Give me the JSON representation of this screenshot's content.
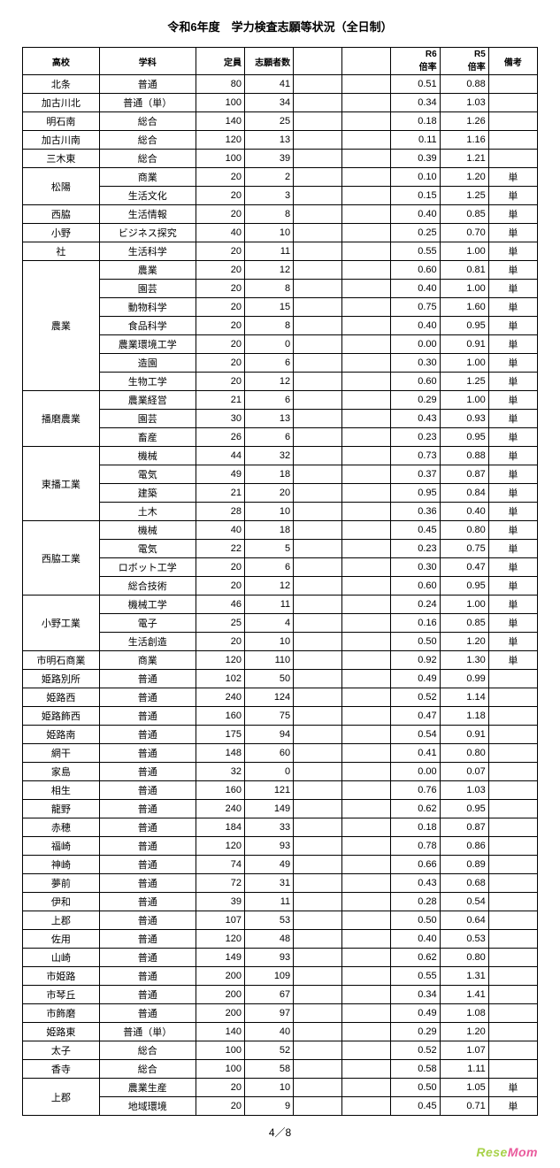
{
  "title": "令和6年度　学力検査志願等状況（全日制）",
  "pager": "4／8",
  "brand_left": "Rese",
  "brand_right": "Mom",
  "headers": {
    "school": "高校",
    "dept": "学科",
    "capacity": "定員",
    "applicants": "志願者数",
    "blank1": "",
    "blank2": "",
    "r6": "R6\n倍率",
    "r5": "R5\n倍率",
    "note": "備考"
  },
  "groups": [
    {
      "school": "北条",
      "rows": [
        {
          "dept": "普通",
          "cap": 80,
          "app": 41,
          "r6": "0.51",
          "r5": "0.88",
          "note": ""
        }
      ]
    },
    {
      "school": "加古川北",
      "rows": [
        {
          "dept": "普通（単）",
          "cap": 100,
          "app": 34,
          "r6": "0.34",
          "r5": "1.03",
          "note": ""
        }
      ]
    },
    {
      "school": "明石南",
      "rows": [
        {
          "dept": "総合",
          "cap": 140,
          "app": 25,
          "r6": "0.18",
          "r5": "1.26",
          "note": ""
        }
      ]
    },
    {
      "school": "加古川南",
      "rows": [
        {
          "dept": "総合",
          "cap": 120,
          "app": 13,
          "r6": "0.11",
          "r5": "1.16",
          "note": ""
        }
      ]
    },
    {
      "school": "三木東",
      "rows": [
        {
          "dept": "総合",
          "cap": 100,
          "app": 39,
          "r6": "0.39",
          "r5": "1.21",
          "note": ""
        }
      ]
    },
    {
      "school": "松陽",
      "rows": [
        {
          "dept": "商業",
          "cap": 20,
          "app": 2,
          "r6": "0.10",
          "r5": "1.20",
          "note": "単"
        },
        {
          "dept": "生活文化",
          "cap": 20,
          "app": 3,
          "r6": "0.15",
          "r5": "1.25",
          "note": "単"
        }
      ]
    },
    {
      "school": "西脇",
      "rows": [
        {
          "dept": "生活情報",
          "cap": 20,
          "app": 8,
          "r6": "0.40",
          "r5": "0.85",
          "note": "単"
        }
      ]
    },
    {
      "school": "小野",
      "rows": [
        {
          "dept": "ビジネス探究",
          "cap": 40,
          "app": 10,
          "r6": "0.25",
          "r5": "0.70",
          "note": "単"
        }
      ]
    },
    {
      "school": "社",
      "rows": [
        {
          "dept": "生活科学",
          "cap": 20,
          "app": 11,
          "r6": "0.55",
          "r5": "1.00",
          "note": "単"
        }
      ]
    },
    {
      "school": "農業",
      "rows": [
        {
          "dept": "農業",
          "cap": 20,
          "app": 12,
          "r6": "0.60",
          "r5": "0.81",
          "note": "単"
        },
        {
          "dept": "園芸",
          "cap": 20,
          "app": 8,
          "r6": "0.40",
          "r5": "1.00",
          "note": "単"
        },
        {
          "dept": "動物科学",
          "cap": 20,
          "app": 15,
          "r6": "0.75",
          "r5": "1.60",
          "note": "単"
        },
        {
          "dept": "食品科学",
          "cap": 20,
          "app": 8,
          "r6": "0.40",
          "r5": "0.95",
          "note": "単"
        },
        {
          "dept": "農業環境工学",
          "cap": 20,
          "app": 0,
          "r6": "0.00",
          "r5": "0.91",
          "note": "単"
        },
        {
          "dept": "造園",
          "cap": 20,
          "app": 6,
          "r6": "0.30",
          "r5": "1.00",
          "note": "単"
        },
        {
          "dept": "生物工学",
          "cap": 20,
          "app": 12,
          "r6": "0.60",
          "r5": "1.25",
          "note": "単"
        }
      ]
    },
    {
      "school": "播磨農業",
      "rows": [
        {
          "dept": "農業経営",
          "cap": 21,
          "app": 6,
          "r6": "0.29",
          "r5": "1.00",
          "note": "単"
        },
        {
          "dept": "園芸",
          "cap": 30,
          "app": 13,
          "r6": "0.43",
          "r5": "0.93",
          "note": "単"
        },
        {
          "dept": "畜産",
          "cap": 26,
          "app": 6,
          "r6": "0.23",
          "r5": "0.95",
          "note": "単"
        }
      ]
    },
    {
      "school": "東播工業",
      "rows": [
        {
          "dept": "機械",
          "cap": 44,
          "app": 32,
          "r6": "0.73",
          "r5": "0.88",
          "note": "単"
        },
        {
          "dept": "電気",
          "cap": 49,
          "app": 18,
          "r6": "0.37",
          "r5": "0.87",
          "note": "単"
        },
        {
          "dept": "建築",
          "cap": 21,
          "app": 20,
          "r6": "0.95",
          "r5": "0.84",
          "note": "単"
        },
        {
          "dept": "土木",
          "cap": 28,
          "app": 10,
          "r6": "0.36",
          "r5": "0.40",
          "note": "単"
        }
      ]
    },
    {
      "school": "西脇工業",
      "rows": [
        {
          "dept": "機械",
          "cap": 40,
          "app": 18,
          "r6": "0.45",
          "r5": "0.80",
          "note": "単"
        },
        {
          "dept": "電気",
          "cap": 22,
          "app": 5,
          "r6": "0.23",
          "r5": "0.75",
          "note": "単"
        },
        {
          "dept": "ロボット工学",
          "cap": 20,
          "app": 6,
          "r6": "0.30",
          "r5": "0.47",
          "note": "単"
        },
        {
          "dept": "総合技術",
          "cap": 20,
          "app": 12,
          "r6": "0.60",
          "r5": "0.95",
          "note": "単"
        }
      ]
    },
    {
      "school": "小野工業",
      "rows": [
        {
          "dept": "機械工学",
          "cap": 46,
          "app": 11,
          "r6": "0.24",
          "r5": "1.00",
          "note": "単"
        },
        {
          "dept": "電子",
          "cap": 25,
          "app": 4,
          "r6": "0.16",
          "r5": "0.85",
          "note": "単"
        },
        {
          "dept": "生活創造",
          "cap": 20,
          "app": 10,
          "r6": "0.50",
          "r5": "1.20",
          "note": "単"
        }
      ]
    },
    {
      "school": "市明石商業",
      "rows": [
        {
          "dept": "商業",
          "cap": 120,
          "app": 110,
          "r6": "0.92",
          "r5": "1.30",
          "note": "単"
        }
      ]
    },
    {
      "school": "姫路別所",
      "rows": [
        {
          "dept": "普通",
          "cap": 102,
          "app": 50,
          "r6": "0.49",
          "r5": "0.99",
          "note": ""
        }
      ]
    },
    {
      "school": "姫路西",
      "rows": [
        {
          "dept": "普通",
          "cap": 240,
          "app": 124,
          "r6": "0.52",
          "r5": "1.14",
          "note": ""
        }
      ]
    },
    {
      "school": "姫路飾西",
      "rows": [
        {
          "dept": "普通",
          "cap": 160,
          "app": 75,
          "r6": "0.47",
          "r5": "1.18",
          "note": ""
        }
      ]
    },
    {
      "school": "姫路南",
      "rows": [
        {
          "dept": "普通",
          "cap": 175,
          "app": 94,
          "r6": "0.54",
          "r5": "0.91",
          "note": ""
        }
      ]
    },
    {
      "school": "網干",
      "rows": [
        {
          "dept": "普通",
          "cap": 148,
          "app": 60,
          "r6": "0.41",
          "r5": "0.80",
          "note": ""
        }
      ]
    },
    {
      "school": "家島",
      "rows": [
        {
          "dept": "普通",
          "cap": 32,
          "app": 0,
          "r6": "0.00",
          "r5": "0.07",
          "note": ""
        }
      ]
    },
    {
      "school": "相生",
      "rows": [
        {
          "dept": "普通",
          "cap": 160,
          "app": 121,
          "r6": "0.76",
          "r5": "1.03",
          "note": ""
        }
      ]
    },
    {
      "school": "龍野",
      "rows": [
        {
          "dept": "普通",
          "cap": 240,
          "app": 149,
          "r6": "0.62",
          "r5": "0.95",
          "note": ""
        }
      ]
    },
    {
      "school": "赤穂",
      "rows": [
        {
          "dept": "普通",
          "cap": 184,
          "app": 33,
          "r6": "0.18",
          "r5": "0.87",
          "note": ""
        }
      ]
    },
    {
      "school": "福崎",
      "rows": [
        {
          "dept": "普通",
          "cap": 120,
          "app": 93,
          "r6": "0.78",
          "r5": "0.86",
          "note": ""
        }
      ]
    },
    {
      "school": "神崎",
      "rows": [
        {
          "dept": "普通",
          "cap": 74,
          "app": 49,
          "r6": "0.66",
          "r5": "0.89",
          "note": ""
        }
      ]
    },
    {
      "school": "夢前",
      "rows": [
        {
          "dept": "普通",
          "cap": 72,
          "app": 31,
          "r6": "0.43",
          "r5": "0.68",
          "note": ""
        }
      ]
    },
    {
      "school": "伊和",
      "rows": [
        {
          "dept": "普通",
          "cap": 39,
          "app": 11,
          "r6": "0.28",
          "r5": "0.54",
          "note": ""
        }
      ]
    },
    {
      "school": "上郡",
      "rows": [
        {
          "dept": "普通",
          "cap": 107,
          "app": 53,
          "r6": "0.50",
          "r5": "0.64",
          "note": ""
        }
      ]
    },
    {
      "school": "佐用",
      "rows": [
        {
          "dept": "普通",
          "cap": 120,
          "app": 48,
          "r6": "0.40",
          "r5": "0.53",
          "note": ""
        }
      ]
    },
    {
      "school": "山崎",
      "rows": [
        {
          "dept": "普通",
          "cap": 149,
          "app": 93,
          "r6": "0.62",
          "r5": "0.80",
          "note": ""
        }
      ]
    },
    {
      "school": "市姫路",
      "rows": [
        {
          "dept": "普通",
          "cap": 200,
          "app": 109,
          "r6": "0.55",
          "r5": "1.31",
          "note": ""
        }
      ]
    },
    {
      "school": "市琴丘",
      "rows": [
        {
          "dept": "普通",
          "cap": 200,
          "app": 67,
          "r6": "0.34",
          "r5": "1.41",
          "note": ""
        }
      ]
    },
    {
      "school": "市飾磨",
      "rows": [
        {
          "dept": "普通",
          "cap": 200,
          "app": 97,
          "r6": "0.49",
          "r5": "1.08",
          "note": ""
        }
      ]
    },
    {
      "school": "姫路東",
      "rows": [
        {
          "dept": "普通（単）",
          "cap": 140,
          "app": 40,
          "r6": "0.29",
          "r5": "1.20",
          "note": ""
        }
      ]
    },
    {
      "school": "太子",
      "rows": [
        {
          "dept": "総合",
          "cap": 100,
          "app": 52,
          "r6": "0.52",
          "r5": "1.07",
          "note": ""
        }
      ]
    },
    {
      "school": "香寺",
      "rows": [
        {
          "dept": "総合",
          "cap": 100,
          "app": 58,
          "r6": "0.58",
          "r5": "1.11",
          "note": ""
        }
      ]
    },
    {
      "school": "上郡",
      "rows": [
        {
          "dept": "農業生産",
          "cap": 20,
          "app": 10,
          "r6": "0.50",
          "r5": "1.05",
          "note": "単"
        },
        {
          "dept": "地域環境",
          "cap": 20,
          "app": 9,
          "r6": "0.45",
          "r5": "0.71",
          "note": "単"
        }
      ]
    }
  ]
}
